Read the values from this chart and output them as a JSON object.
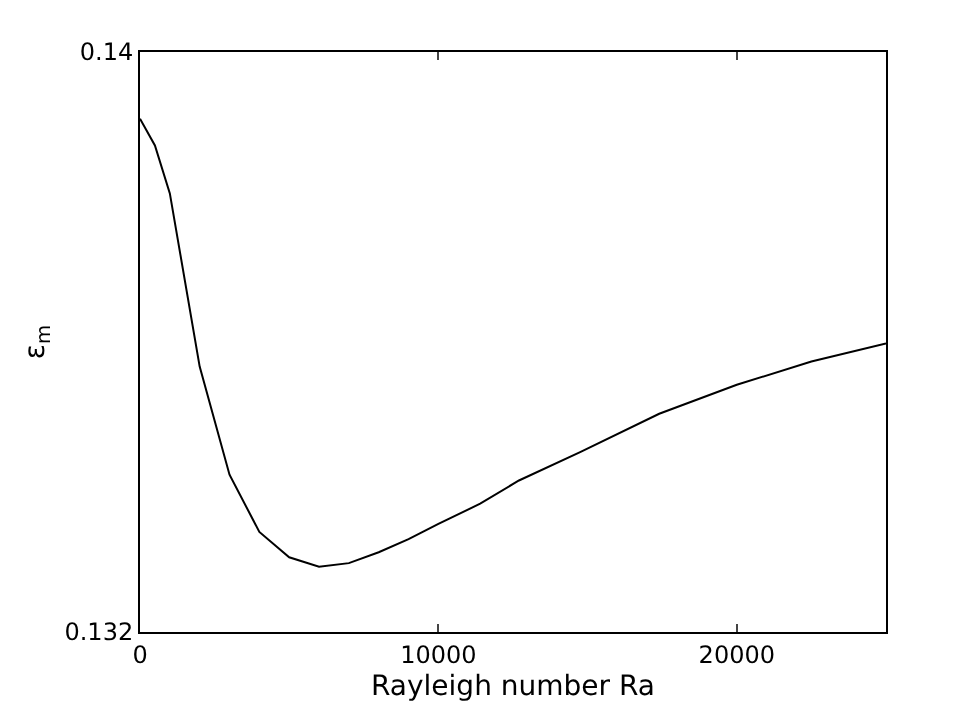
{
  "chart_data": {
    "type": "line",
    "xlabel": "Rayleigh number Ra",
    "ylabel": "ε$_{m}$",
    "x": [
      0,
      500,
      1000,
      2000,
      3000,
      4000,
      5000,
      6000,
      7000,
      8000,
      9000,
      10000,
      11400,
      12700,
      14750,
      17400,
      20000,
      22500,
      25000
    ],
    "series": [
      {
        "color": "#000000",
        "values": [
          0.13908,
          0.13871,
          0.13805,
          0.13566,
          0.13417,
          0.13338,
          0.13303,
          0.1329,
          0.13295,
          0.1331,
          0.13328,
          0.13349,
          0.13377,
          0.13409,
          0.13448,
          0.13501,
          0.13541,
          0.13573,
          0.13598
        ]
      }
    ],
    "xlim": [
      0,
      25000
    ],
    "xticks": [
      0,
      10000,
      20000
    ],
    "ylim": [
      0.132,
      0.14
    ],
    "yticks": [
      0.132,
      0.14
    ],
    "grid": false,
    "marker": "none",
    "line_style": "solid"
  }
}
